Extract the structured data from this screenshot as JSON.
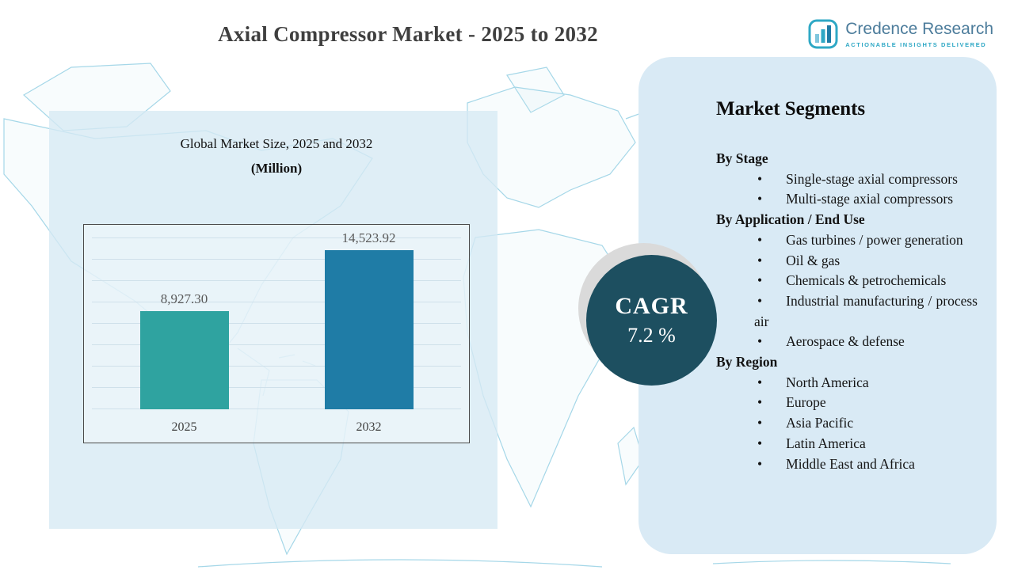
{
  "header": {
    "title": "Axial Compressor Market - 2025 to 2032",
    "logo_name": "Credence Research",
    "logo_tagline": "Actionable Insights Delivered"
  },
  "chart": {
    "title": "Global Market Size, 2025 and 2032",
    "subtitle": "(Million)"
  },
  "chart_data": {
    "type": "bar",
    "title": "Global Market Size, 2025 and 2032 (Million)",
    "categories": [
      "2025",
      "2032"
    ],
    "values": [
      8927.3,
      14523.92
    ],
    "value_labels": [
      "8,927.30",
      "14,523.92"
    ],
    "bar_colors": [
      "#2fa3a0",
      "#1f7ca6"
    ],
    "xlabel": "",
    "ylabel": "",
    "ylim": [
      0,
      16000
    ],
    "grid": true,
    "legend": false
  },
  "cagr_badge": {
    "label": "CAGR",
    "value": "7.2 %"
  },
  "segments": {
    "title": "Market Segments",
    "bullet": "•",
    "groups": [
      {
        "heading": "By Stage",
        "items": [
          "Single-stage axial compressors",
          "Multi-stage axial compressors"
        ]
      },
      {
        "heading": "By Application / End Use",
        "items": [
          "Gas turbines / power generation",
          "Oil & gas",
          "Chemicals & petrochemicals",
          "Industrial manufacturing / process air",
          "Aerospace & defense"
        ]
      },
      {
        "heading": "By Region",
        "items": [
          "North America",
          "Europe",
          "Asia Pacific",
          "Latin America",
          "Middle East and Africa"
        ]
      }
    ]
  },
  "colors": {
    "bar_2025": "#2fa3a0",
    "bar_2032": "#1f7ca6",
    "cagr_circle": "#1d4f60",
    "panel_bg": "#d9eaf5",
    "map_line": "#a5d7e8",
    "title_text": "#3f3f3f"
  }
}
